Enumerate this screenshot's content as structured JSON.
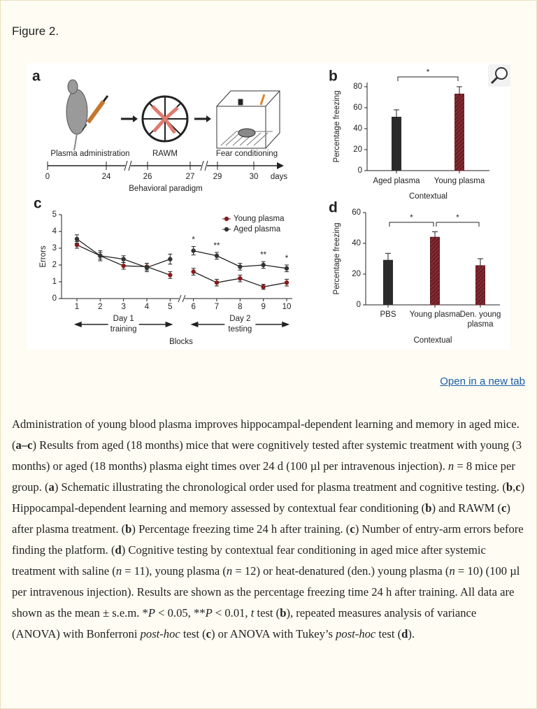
{
  "header": {
    "title": "Figure 2."
  },
  "panel_a": {
    "letter": "a",
    "labels": [
      "Plasma administration",
      "RAWM",
      "Fear conditioning"
    ],
    "ticks": [
      0,
      24,
      26,
      27,
      29,
      30
    ],
    "unit": "days",
    "axis_label": "Behavioral paradigm"
  },
  "chart_data": [
    {
      "type": "bar",
      "letter": "b",
      "categories": [
        "Aged plasma",
        "Young plasma"
      ],
      "values": [
        51,
        73
      ],
      "errors": [
        7,
        7
      ],
      "colors": [
        "#2b2b2b",
        "#6b1e24"
      ],
      "ylim": [
        0,
        84
      ],
      "yticks": [
        0,
        20,
        40,
        60,
        80
      ],
      "ylabel": "Percentage freezing",
      "xlabel": "Contextual",
      "annotations": [
        {
          "from": 0,
          "to": 1,
          "text": "*"
        }
      ]
    },
    {
      "type": "line",
      "letter": "c",
      "x": [
        1,
        2,
        3,
        4,
        5,
        6,
        7,
        8,
        9,
        10
      ],
      "xlim": [
        0.34,
        10.24
      ],
      "xticks": [
        1,
        2,
        3,
        4,
        5,
        6,
        7,
        8,
        9,
        10
      ],
      "ylim": [
        0,
        5
      ],
      "yticks": [
        0,
        1,
        2,
        3,
        4,
        5
      ],
      "ylabel": "Errors",
      "xlabel": "Blocks",
      "axis_break": true,
      "series": [
        {
          "name": "Young plasma",
          "color": "#8b1a1a",
          "values": [
            3.2,
            2.55,
            1.95,
            1.9,
            1.4,
            1.6,
            0.95,
            1.2,
            0.7,
            0.95
          ],
          "errors": [
            0.2,
            0.2,
            0.2,
            0.2,
            0.2,
            0.2,
            0.2,
            0.2,
            0.15,
            0.2
          ]
        },
        {
          "name": "Aged plasma",
          "color": "#333333",
          "values": [
            3.55,
            2.55,
            2.35,
            1.85,
            2.35,
            2.85,
            2.55,
            1.9,
            2.0,
            1.8
          ],
          "errors": [
            0.25,
            0.3,
            0.2,
            0.25,
            0.3,
            0.25,
            0.2,
            0.2,
            0.2,
            0.2
          ]
        }
      ],
      "groups": [
        {
          "from": 1,
          "to": 5,
          "lines": [
            "Day 1",
            "training"
          ]
        },
        {
          "from": 6,
          "to": 10,
          "lines": [
            "Day 2",
            "testing"
          ]
        }
      ],
      "annotations": [
        {
          "x": 6,
          "text": "*"
        },
        {
          "x": 7,
          "text": "**"
        },
        {
          "x": 9,
          "text": "**"
        },
        {
          "x": 10,
          "text": "*"
        }
      ],
      "legend": "top-right"
    },
    {
      "type": "bar",
      "letter": "d",
      "categories": [
        "PBS",
        "Young plasma",
        "Den. young plasma"
      ],
      "values": [
        29,
        44,
        25.5
      ],
      "errors": [
        4.5,
        3.5,
        4.5
      ],
      "colors": [
        "#2b2b2b",
        "#6b1e24",
        "#6b1e24"
      ],
      "ylim": [
        0,
        60
      ],
      "yticks": [
        0,
        20,
        40,
        60
      ],
      "ylabel": "Percentage freezing",
      "xlabel": "Contextual",
      "annotations": [
        {
          "from": 0,
          "to": 1,
          "text": "*"
        },
        {
          "from": 1,
          "to": 2,
          "text": "*"
        }
      ]
    }
  ],
  "link": "Open in a new tab",
  "caption": [
    {
      "t": "Administration of young blood plasma improves hippocampal-dependent learning and memory in aged mice. ("
    },
    {
      "t": "a–c",
      "s": "b"
    },
    {
      "t": ") Results from aged (18 months) mice that were cognitively tested after systemic treatment with young (3 months) or aged (18 months) plasma eight times over 24 d (100 µl per intravenous injection). "
    },
    {
      "t": "n",
      "s": "i"
    },
    {
      "t": " = 8 mice per group. ("
    },
    {
      "t": "a",
      "s": "b"
    },
    {
      "t": ") Schematic illustrating the chronological order used for plasma treatment and cognitive testing. ("
    },
    {
      "t": "b",
      "s": "b"
    },
    {
      "t": ","
    },
    {
      "t": "c",
      "s": "b"
    },
    {
      "t": ") Hippocampal-dependent learning and memory assessed by contextual fear conditioning ("
    },
    {
      "t": "b",
      "s": "b"
    },
    {
      "t": ") and RAWM ("
    },
    {
      "t": "c",
      "s": "b"
    },
    {
      "t": ") after plasma treatment. ("
    },
    {
      "t": "b",
      "s": "b"
    },
    {
      "t": ") Percentage freezing time 24 h after training. ("
    },
    {
      "t": "c",
      "s": "b"
    },
    {
      "t": ") Number of entry-arm errors before finding the platform. ("
    },
    {
      "t": "d",
      "s": "b"
    },
    {
      "t": ") Cognitive testing by contextual fear conditioning in aged mice after systemic treatment with saline ("
    },
    {
      "t": "n",
      "s": "i"
    },
    {
      "t": " = 11), young plasma ("
    },
    {
      "t": "n",
      "s": "i"
    },
    {
      "t": " = 12) or heat-denatured (den.) young plasma ("
    },
    {
      "t": "n",
      "s": "i"
    },
    {
      "t": " = 10) (100 µl per intravenous injection). Results are shown as the percentage freezing time 24 h after training. All data are shown as the mean ± s.e.m. *"
    },
    {
      "t": "P",
      "s": "i"
    },
    {
      "t": " < 0.05, **"
    },
    {
      "t": "P",
      "s": "i"
    },
    {
      "t": " < 0.01, "
    },
    {
      "t": "t",
      "s": "i"
    },
    {
      "t": " test ("
    },
    {
      "t": "b",
      "s": "b"
    },
    {
      "t": "), repeated measures analysis of variance (ANOVA) with Bonferroni "
    },
    {
      "t": "post-hoc",
      "s": "i"
    },
    {
      "t": " test ("
    },
    {
      "t": "c",
      "s": "b"
    },
    {
      "t": ") or ANOVA with Tukey’s "
    },
    {
      "t": "post-hoc",
      "s": "i"
    },
    {
      "t": " test ("
    },
    {
      "t": "d",
      "s": "b"
    },
    {
      "t": ")."
    }
  ]
}
